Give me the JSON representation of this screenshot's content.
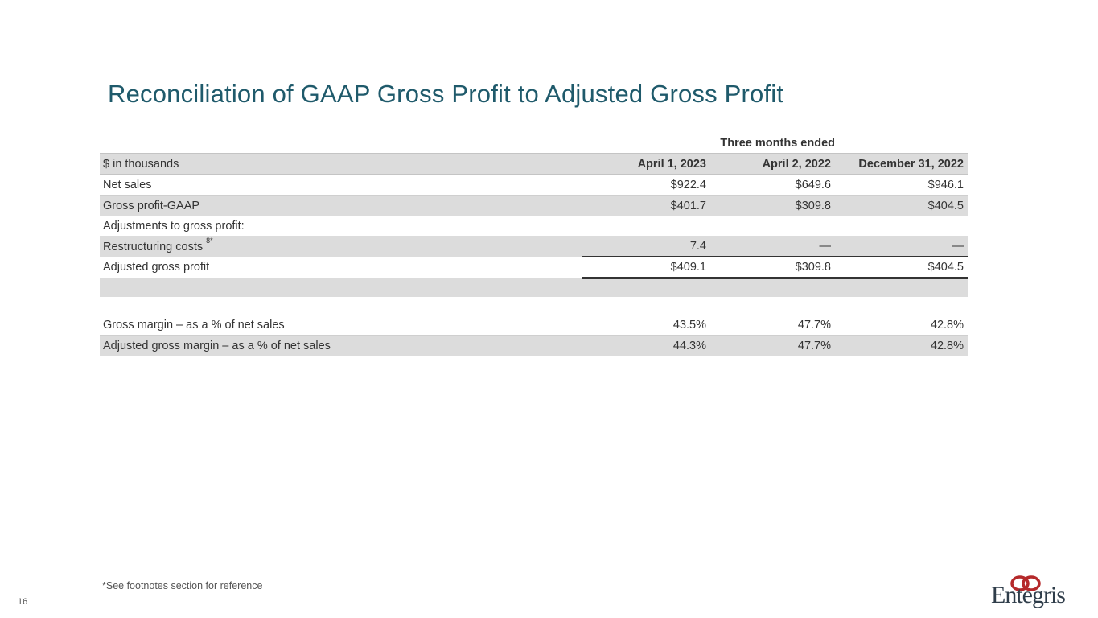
{
  "title": "Reconciliation of GAAP Gross Profit to Adjusted Gross Profit",
  "table": {
    "group_header": "Three months ended",
    "unit_label": "$ in thousands",
    "columns": [
      "April 1, 2023",
      "April 2, 2022",
      "December 31, 2022"
    ],
    "rows": {
      "net_sales": {
        "label": "Net sales",
        "values": [
          "$922.4",
          "$649.6",
          "$946.1"
        ]
      },
      "gross_profit_gaap": {
        "label": "Gross profit-GAAP",
        "values": [
          "$401.7",
          "$309.8",
          "$404.5"
        ]
      },
      "adjustments": {
        "label": "Adjustments to gross profit:"
      },
      "restructuring": {
        "label": "Restructuring costs",
        "footnote_marker": "8*",
        "values": [
          "7.4",
          "—",
          "—"
        ]
      },
      "adjusted_gross_profit": {
        "label": "Adjusted gross profit",
        "values": [
          "$409.1",
          "$309.8",
          "$404.5"
        ]
      },
      "gross_margin": {
        "label": "Gross margin – as a % of net sales",
        "values": [
          "43.5%",
          "47.7%",
          "42.8%"
        ]
      },
      "adjusted_gross_margin": {
        "label": "Adjusted gross margin – as a % of net sales",
        "values": [
          "44.3%",
          "47.7%",
          "42.8%"
        ]
      }
    }
  },
  "footnote": "*See footnotes section for reference",
  "page_number": "16",
  "logo": {
    "text": "Entegris",
    "mark_color": "#b5292b",
    "icon": "entegris-rings-icon"
  },
  "colors": {
    "title": "#1f5a6b",
    "row_shade": "#dcdcdc"
  }
}
